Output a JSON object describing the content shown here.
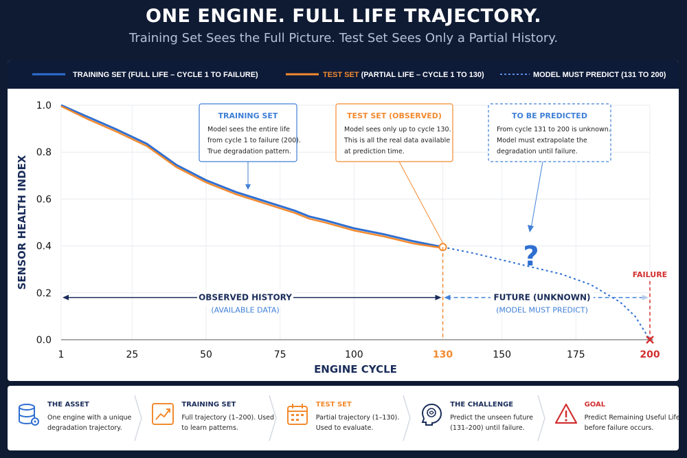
{
  "header": {
    "title": "ONE ENGINE. FULL LIFE TRAJECTORY.",
    "subtitle": "Training Set Sees the Full Picture. Test Set Sees Only a Partial History."
  },
  "legend": {
    "training": "TRAINING SET (FULL LIFE – CYCLE 1 TO FAILURE)",
    "test_highlight": "TEST SET",
    "test_rest": " (PARTIAL LIFE – CYCLE 1 TO 130)",
    "predict": "MODEL MUST PREDICT (131 TO 200)"
  },
  "colors": {
    "training": "#2f6fd1",
    "test": "#f28a2e",
    "predict": "#2f6fd1",
    "failure": "#d32f2f",
    "navy": "#1a2d5a"
  },
  "chart_data": {
    "type": "line",
    "xlabel": "ENGINE CYCLE",
    "ylabel": "SENSOR HEALTH INDEX",
    "xlim": [
      1,
      200
    ],
    "ylim": [
      0,
      1.0
    ],
    "x_ticks": [
      "1",
      "25",
      "50",
      "75",
      "100",
      "130",
      "150",
      "175",
      "200"
    ],
    "y_ticks": [
      "0.0",
      "0.2",
      "0.4",
      "0.6",
      "0.8",
      "1.0"
    ],
    "series": [
      {
        "name": "TRAINING SET (FULL LIFE – CYCLE 1 TO FAILURE)",
        "x": [
          1,
          10,
          20,
          25,
          30,
          40,
          50,
          60,
          70,
          80,
          85,
          90,
          100,
          110,
          120,
          130
        ],
        "values": [
          1.0,
          0.95,
          0.895,
          0.865,
          0.835,
          0.745,
          0.68,
          0.63,
          0.59,
          0.55,
          0.525,
          0.51,
          0.475,
          0.45,
          0.42,
          0.395
        ]
      },
      {
        "name": "TEST SET (PARTIAL LIFE – CYCLE 1 TO 130)",
        "x": [
          1,
          10,
          20,
          25,
          30,
          40,
          50,
          60,
          70,
          80,
          85,
          90,
          100,
          110,
          120,
          130
        ],
        "values": [
          1.0,
          0.945,
          0.89,
          0.86,
          0.83,
          0.74,
          0.675,
          0.625,
          0.585,
          0.545,
          0.52,
          0.505,
          0.47,
          0.445,
          0.415,
          0.395
        ]
      },
      {
        "name": "MODEL MUST PREDICT (131 TO 200)",
        "x": [
          130,
          140,
          150,
          160,
          170,
          180,
          190,
          195,
          200
        ],
        "values": [
          0.395,
          0.37,
          0.34,
          0.31,
          0.28,
          0.235,
          0.16,
          0.1,
          0.0
        ]
      }
    ],
    "annotations": {
      "training_box": {
        "title": "TRAINING SET",
        "lines": [
          "Model sees the entire life",
          "from cycle 1 to failure (200).",
          "True degradation pattern."
        ]
      },
      "test_box": {
        "title": "TEST SET (OBSERVED)",
        "lines": [
          "Model sees only up to cycle 130.",
          "This is all the real data available",
          "at prediction time."
        ]
      },
      "predict_box": {
        "title": "TO BE PREDICTED",
        "lines": [
          "From cycle 131 to 200 is unknown.",
          "Model must extrapolate the",
          "degradation until failure."
        ]
      },
      "question": "?",
      "failure_label": "FAILURE",
      "observed_title": "OBSERVED HISTORY",
      "observed_sub": "(AVAILABLE DATA)",
      "future_title": "FUTURE (UNKNOWN)",
      "future_sub": "(MODEL MUST PREDICT)"
    }
  },
  "cards": [
    {
      "icon": "database-icon",
      "title": "THE ASSET",
      "desc": "One engine with a unique degradation trajectory."
    },
    {
      "icon": "trend-chart-icon",
      "title": "TRAINING SET",
      "desc": "Full trajectory (1–200). Used to learn patterns."
    },
    {
      "icon": "calendar-icon",
      "title": "TEST SET",
      "desc": "Partial trajectory (1–130). Used to evaluate."
    },
    {
      "icon": "brain-head-icon",
      "title": "THE CHALLENGE",
      "desc": "Predict the unseen future (131–200) until failure."
    },
    {
      "icon": "warning-icon",
      "title": "GOAL",
      "desc": "Predict Remaining Useful Life before failure occurs."
    }
  ]
}
